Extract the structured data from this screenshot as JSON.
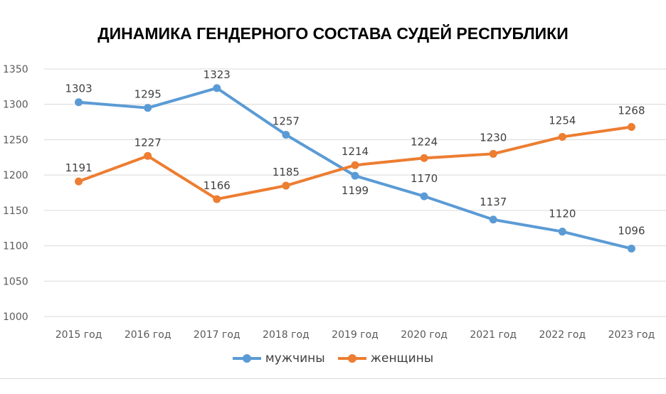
{
  "chart_data": {
    "type": "line",
    "title": "ДИНАМИКА ГЕНДЕРНОГО СОСТАВА СУДЕЙ РЕСПУБЛИКИ",
    "categories": [
      "2015 год",
      "2016 год",
      "2017 год",
      "2018 год",
      "2019 год",
      "2020 год",
      "2021 год",
      "2022 год",
      "2023 год"
    ],
    "ylim": [
      1000,
      1350
    ],
    "yticks": [
      1000,
      1050,
      1100,
      1150,
      1200,
      1250,
      1300,
      1350
    ],
    "grid": true,
    "legend_position": "bottom",
    "series": [
      {
        "name": "мужчины",
        "color": "#5b9bd5",
        "values": [
          1303,
          1295,
          1323,
          1257,
          1199,
          1170,
          1137,
          1120,
          1096
        ]
      },
      {
        "name": "женщины",
        "color": "#ed7d31",
        "values": [
          1191,
          1227,
          1166,
          1185,
          1214,
          1224,
          1230,
          1254,
          1268
        ]
      }
    ]
  }
}
